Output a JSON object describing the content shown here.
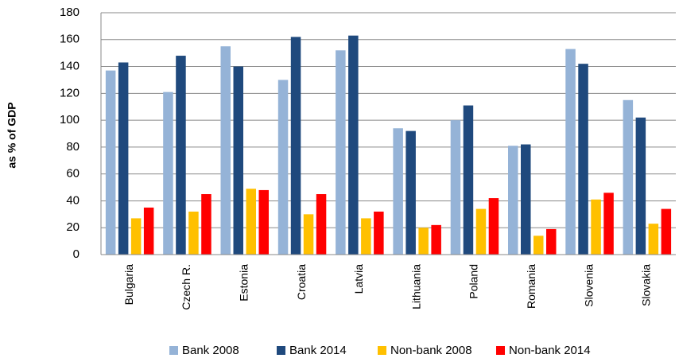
{
  "chart_data": {
    "type": "bar",
    "y_label": "as % of GDP",
    "categories": [
      "Bulgaria",
      "Czech R.",
      "Estonia",
      "Croatia",
      "Latvia",
      "Lithuania",
      "Poland",
      "Romania",
      "Slovenia",
      "Slovakia"
    ],
    "series": [
      {
        "name": "Bank 2008",
        "color": "#95b3d7",
        "values": [
          137,
          121,
          155,
          130,
          152,
          94,
          100,
          81,
          153,
          115
        ]
      },
      {
        "name": "Bank 2014",
        "color": "#1f497d",
        "values": [
          143,
          148,
          140,
          162,
          163,
          92,
          111,
          82,
          142,
          102
        ]
      },
      {
        "name": "Non-bank 2008",
        "color": "#ffc000",
        "values": [
          27,
          32,
          49,
          30,
          27,
          20,
          34,
          14,
          41,
          23
        ]
      },
      {
        "name": "Non-bank 2014",
        "color": "#ff0000",
        "values": [
          35,
          45,
          48,
          45,
          32,
          22,
          42,
          19,
          46,
          34
        ]
      }
    ],
    "ylim": [
      0,
      180
    ],
    "yticks": [
      0,
      20,
      40,
      60,
      80,
      100,
      120,
      140,
      160,
      180
    ],
    "grid": true,
    "legend": "bottom"
  }
}
